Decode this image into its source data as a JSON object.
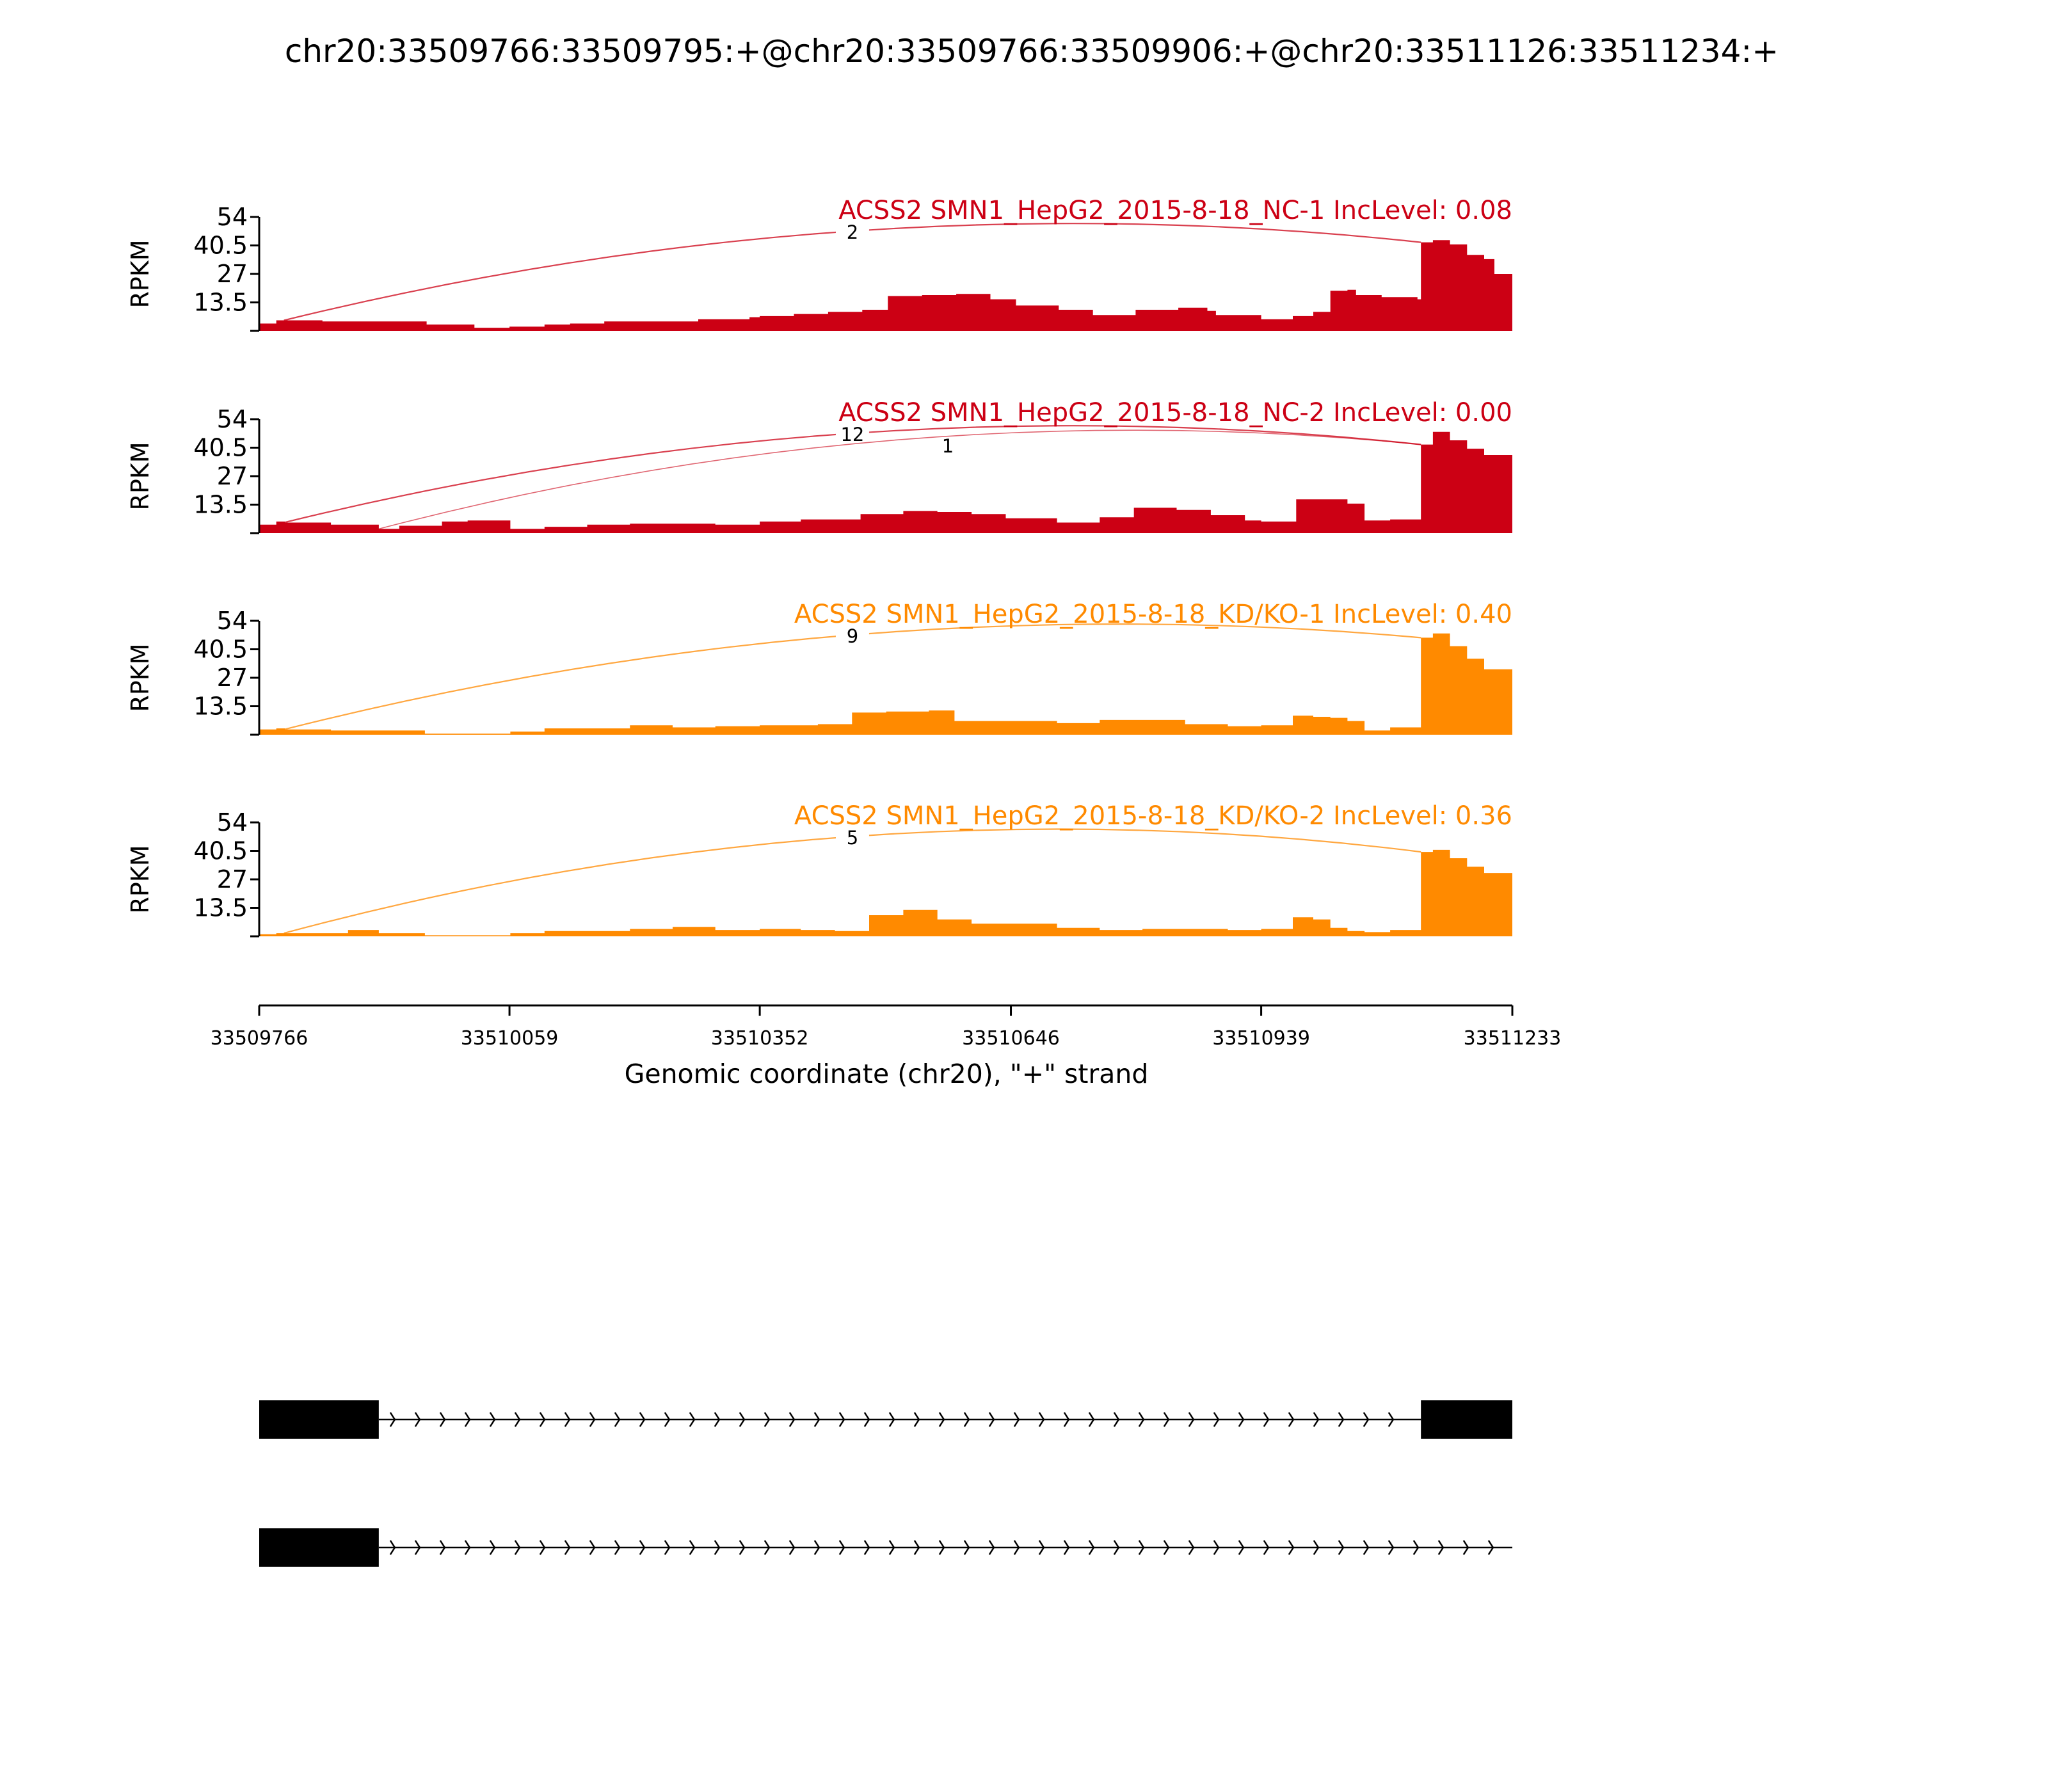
{
  "chart_data": {
    "type": "area",
    "title": "chr20:33509766:33509795:+@chr20:33509766:33509906:+@chr20:33511126:33511234:+",
    "xlabel": "Genomic coordinate (chr20), \"+\" strand",
    "ylabel": "RPKM",
    "xlim": [
      33509766,
      33511233
    ],
    "xticks": [
      "33509766",
      "33510059",
      "33510352",
      "33510646",
      "33510939",
      "33511233"
    ],
    "ylim": [
      0,
      54
    ],
    "yticks": [
      "13.5",
      "27",
      "40.5",
      "54"
    ],
    "colors": {
      "control": "#cc0014",
      "knockdown": "#ff8a00"
    },
    "panels": [
      {
        "label": "ACSS2 SMN1_HepG2_2015-8-18_NC-1 IncLevel: 0.08",
        "group": "control",
        "coverage": {
          "x": [
            33509766,
            33509786,
            33509796,
            33509840,
            33509905,
            33509962,
            33510018,
            33510059,
            33510100,
            33510130,
            33510170,
            33510220,
            33510280,
            33510340,
            33510352,
            33510392,
            33510432,
            33510472,
            33510502,
            33510542,
            33510582,
            33510622,
            33510652,
            33510702,
            33510742,
            33510792,
            33510842,
            33510876,
            33510886,
            33510939,
            33510976,
            33511000,
            33511020,
            33511040,
            33511050,
            33511080,
            33511122,
            33511126,
            33511140,
            33511160,
            33511180,
            33511200,
            33511212,
            33511233
          ],
          "y": [
            3.5,
            5,
            5,
            4.5,
            4.5,
            3,
            1.5,
            2,
            3,
            3.5,
            4.5,
            4.5,
            5.5,
            6.5,
            7,
            8,
            9,
            10,
            16.5,
            17,
            17.5,
            15,
            12,
            10,
            7.5,
            10,
            11,
            9.5,
            7.5,
            5.5,
            7,
            9,
            19,
            19.5,
            17,
            16,
            15,
            42,
            43,
            41,
            36,
            34,
            27,
            26
          ]
        },
        "junctions": [
          {
            "label": "2",
            "start": 33509795,
            "end": 33511126,
            "side": "above"
          }
        ]
      },
      {
        "label": "ACSS2 SMN1_HepG2_2015-8-18_NC-2 IncLevel: 0.00",
        "group": "control",
        "coverage": {
          "x": [
            33509766,
            33509786,
            33509796,
            33509850,
            33509906,
            33509930,
            33509980,
            33510010,
            33510060,
            33510100,
            33510150,
            33510200,
            33510250,
            33510300,
            33510352,
            33510400,
            33510470,
            33510520,
            33510560,
            33510600,
            33510640,
            33510700,
            33510750,
            33510790,
            33510840,
            33510880,
            33510920,
            33510939,
            33510980,
            33511020,
            33511040,
            33511060,
            33511090,
            33511126,
            33511140,
            33511160,
            33511180,
            33511200,
            33511233
          ],
          "y": [
            4,
            5.5,
            5,
            4,
            2,
            3.5,
            5.5,
            6,
            2,
            3,
            4,
            4.5,
            4.5,
            4,
            5.5,
            6.5,
            9,
            10.5,
            10,
            9,
            7,
            5,
            7.5,
            12,
            11,
            8.5,
            6,
            5.5,
            16,
            16,
            14,
            6,
            6.5,
            42,
            48,
            44,
            40,
            37,
            33
          ]
        },
        "junctions": [
          {
            "label": "12",
            "start": 33509795,
            "end": 33511126,
            "side": "above"
          },
          {
            "label": "1",
            "start": 33509906,
            "end": 33511126,
            "side": "above"
          }
        ]
      },
      {
        "label": "ACSS2 SMN1_HepG2_2015-8-18_KD/KO-1 IncLevel: 0.40",
        "group": "knockdown",
        "coverage": {
          "x": [
            33509766,
            33509786,
            33509796,
            33509850,
            33509906,
            33509960,
            33510010,
            33510060,
            33510100,
            33510200,
            33510250,
            33510300,
            33510352,
            33510420,
            33510460,
            33510500,
            33510550,
            33510580,
            33510620,
            33510700,
            33510750,
            33510800,
            33510850,
            33510900,
            33510939,
            33510976,
            33511000,
            33511020,
            33511040,
            33511060,
            33511090,
            33511126,
            33511140,
            33511160,
            33511180,
            33511200,
            33511233
          ],
          "y": [
            2.5,
            3,
            2.5,
            2,
            2,
            0.5,
            0.5,
            1.5,
            3,
            4.5,
            3.5,
            4,
            4.5,
            5,
            10.5,
            11,
            11.5,
            6.5,
            6.5,
            5.5,
            7,
            7,
            5,
            4,
            4.5,
            9,
            8.5,
            8,
            6.5,
            2,
            3.5,
            46,
            48,
            42,
            36,
            31,
            30
          ]
        },
        "junctions": [
          {
            "label": "9",
            "start": 33509795,
            "end": 33511126,
            "side": "above"
          }
        ]
      },
      {
        "label": "ACSS2 SMN1_HepG2_2015-8-18_KD/KO-2 IncLevel: 0.36",
        "group": "knockdown",
        "coverage": {
          "x": [
            33509766,
            33509786,
            33509796,
            33509870,
            33509906,
            33509960,
            33510010,
            33510060,
            33510100,
            33510200,
            33510250,
            33510300,
            33510352,
            33510400,
            33510440,
            33510480,
            33510520,
            33510560,
            33510600,
            33510700,
            33510750,
            33510800,
            33510850,
            33510900,
            33510939,
            33510976,
            33511000,
            33511020,
            33511040,
            33511060,
            33511090,
            33511126,
            33511140,
            33511160,
            33511180,
            33511200,
            33511233
          ],
          "y": [
            1,
            1.5,
            1.5,
            3,
            1.5,
            0.5,
            0.5,
            1.5,
            2.5,
            3.5,
            4.5,
            3,
            3.5,
            3,
            2.5,
            10,
            12.5,
            8,
            6,
            4,
            3,
            3.5,
            3.5,
            3,
            3.5,
            9,
            8,
            4,
            2.5,
            2,
            3,
            40,
            41,
            37,
            33,
            30,
            29
          ]
        },
        "junctions": [
          {
            "label": "5",
            "start": 33509795,
            "end": 33511126,
            "side": "above"
          }
        ]
      }
    ],
    "isoforms": [
      {
        "exons": [
          [
            33509766,
            33509906
          ],
          [
            33511126,
            33511234
          ]
        ],
        "intron": [
          33509906,
          33511126
        ],
        "strand": "+"
      },
      {
        "exons": [
          [
            33509766,
            33509906
          ]
        ],
        "intron": [
          33509906,
          33511233
        ],
        "strand": "+"
      }
    ]
  }
}
